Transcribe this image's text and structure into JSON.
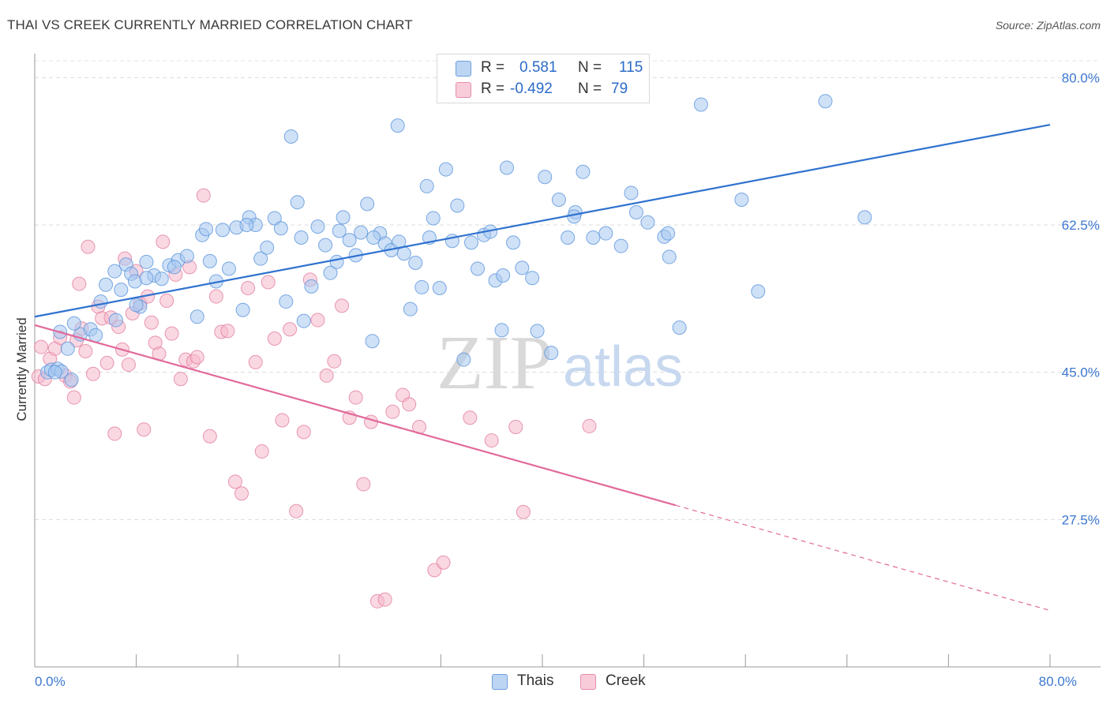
{
  "title": "THAI VS CREEK CURRENTLY MARRIED CORRELATION CHART",
  "source": "Source: ZipAtlas.com",
  "watermark": {
    "zip": "ZIP",
    "atlas": "atlas"
  },
  "legend": {
    "rows": [
      {
        "r_label": "R =",
        "r_value": "0.581",
        "n_label": "N =",
        "n_value": "115",
        "color": "#a8c8f0"
      },
      {
        "r_label": "R =",
        "r_value": "-0.492",
        "n_label": "N =",
        "n_value": "79",
        "color": "#f5b8cb"
      }
    ]
  },
  "bottom_legend": [
    {
      "label": "Thais",
      "color": "#a8c8f0"
    },
    {
      "label": "Creek",
      "color": "#f5b8cb"
    }
  ],
  "chart_data": {
    "type": "scatter",
    "xlabel": "",
    "ylabel": "Currently Married",
    "xlim": [
      0,
      80
    ],
    "ylim": [
      10,
      82
    ],
    "x_ticks": [
      {
        "value": 0,
        "label": "0.0%"
      },
      {
        "value": 80,
        "label": "80.0%"
      }
    ],
    "y_ticks": [
      {
        "value": 27.5,
        "label": "27.5%"
      },
      {
        "value": 45.0,
        "label": "45.0%"
      },
      {
        "value": 62.5,
        "label": "62.5%"
      },
      {
        "value": 80.0,
        "label": "80.0%"
      }
    ],
    "grid": true,
    "series": [
      {
        "name": "Thais",
        "color": "#5b95dc",
        "fill": "#a8c8f0",
        "trend": {
          "x": [
            0,
            80
          ],
          "y": [
            51.6,
            74.4
          ],
          "dashed_after": null
        },
        "points": [
          [
            1.0,
            45.0
          ],
          [
            1.3,
            45.3
          ],
          [
            1.8,
            45.4
          ],
          [
            2.1,
            45.1
          ],
          [
            2.9,
            44.1
          ],
          [
            2.6,
            47.8
          ],
          [
            1.6,
            45.0
          ],
          [
            3.6,
            49.5
          ],
          [
            4.4,
            50.1
          ],
          [
            4.8,
            49.4
          ],
          [
            5.2,
            53.4
          ],
          [
            5.6,
            55.4
          ],
          [
            6.4,
            51.2
          ],
          [
            6.8,
            54.8
          ],
          [
            7.2,
            57.8
          ],
          [
            7.6,
            56.7
          ],
          [
            7.9,
            55.8
          ],
          [
            8.3,
            52.8
          ],
          [
            8.8,
            58.1
          ],
          [
            9.4,
            56.5
          ],
          [
            10.0,
            56.1
          ],
          [
            10.6,
            57.7
          ],
          [
            11.3,
            58.3
          ],
          [
            12.0,
            58.8
          ],
          [
            12.8,
            51.6
          ],
          [
            13.2,
            61.3
          ],
          [
            13.8,
            58.2
          ],
          [
            14.3,
            55.8
          ],
          [
            14.8,
            61.9
          ],
          [
            15.3,
            57.3
          ],
          [
            15.9,
            62.2
          ],
          [
            16.4,
            52.4
          ],
          [
            16.9,
            63.4
          ],
          [
            17.4,
            62.5
          ],
          [
            17.8,
            58.5
          ],
          [
            18.3,
            59.8
          ],
          [
            18.9,
            63.3
          ],
          [
            19.4,
            62.1
          ],
          [
            19.8,
            53.4
          ],
          [
            20.2,
            73.0
          ],
          [
            20.7,
            65.2
          ],
          [
            21.2,
            51.1
          ],
          [
            21.8,
            55.2
          ],
          [
            22.3,
            62.3
          ],
          [
            22.9,
            60.1
          ],
          [
            23.3,
            56.8
          ],
          [
            23.8,
            58.1
          ],
          [
            24.3,
            63.4
          ],
          [
            24.8,
            60.7
          ],
          [
            25.3,
            58.9
          ],
          [
            25.7,
            61.6
          ],
          [
            26.2,
            65.0
          ],
          [
            26.6,
            48.7
          ],
          [
            27.2,
            61.5
          ],
          [
            27.6,
            60.3
          ],
          [
            28.1,
            59.5
          ],
          [
            28.6,
            74.3
          ],
          [
            29.1,
            59.1
          ],
          [
            29.6,
            52.5
          ],
          [
            30.0,
            58.0
          ],
          [
            30.5,
            55.1
          ],
          [
            30.9,
            67.1
          ],
          [
            31.4,
            63.3
          ],
          [
            31.9,
            55.0
          ],
          [
            32.4,
            69.1
          ],
          [
            32.9,
            60.6
          ],
          [
            33.3,
            64.8
          ],
          [
            33.8,
            46.5
          ],
          [
            34.4,
            60.4
          ],
          [
            34.9,
            57.3
          ],
          [
            35.4,
            61.3
          ],
          [
            35.9,
            61.7
          ],
          [
            36.3,
            55.9
          ],
          [
            36.8,
            50.0
          ],
          [
            37.2,
            69.3
          ],
          [
            37.7,
            60.4
          ],
          [
            38.4,
            57.4
          ],
          [
            39.2,
            56.2
          ],
          [
            39.6,
            49.9
          ],
          [
            40.2,
            68.2
          ],
          [
            40.7,
            47.3
          ],
          [
            41.3,
            65.5
          ],
          [
            42.0,
            61.0
          ],
          [
            42.6,
            64.0
          ],
          [
            43.2,
            68.8
          ],
          [
            44.0,
            61.0
          ],
          [
            45.0,
            61.5
          ],
          [
            46.2,
            60.0
          ],
          [
            47.0,
            66.3
          ],
          [
            47.4,
            64.0
          ],
          [
            49.6,
            61.1
          ],
          [
            50.0,
            58.7
          ],
          [
            50.8,
            50.3
          ],
          [
            52.5,
            76.8
          ],
          [
            55.7,
            65.5
          ],
          [
            57.0,
            54.6
          ],
          [
            62.3,
            77.2
          ],
          [
            65.4,
            63.4
          ],
          [
            2.0,
            49.8
          ],
          [
            3.1,
            50.8
          ],
          [
            6.3,
            57.0
          ],
          [
            8.8,
            56.2
          ],
          [
            11.0,
            57.5
          ],
          [
            13.5,
            62.0
          ],
          [
            16.7,
            62.5
          ],
          [
            21.0,
            61.0
          ],
          [
            24.0,
            61.8
          ],
          [
            26.7,
            61.0
          ],
          [
            28.7,
            60.5
          ],
          [
            31.1,
            61.0
          ],
          [
            36.9,
            56.5
          ],
          [
            42.5,
            63.5
          ],
          [
            48.3,
            62.8
          ],
          [
            49.9,
            61.5
          ],
          [
            8.0,
            53.0
          ]
        ]
      },
      {
        "name": "Creek",
        "color": "#e27ea0",
        "fill": "#f5b8cb",
        "trend": {
          "x": [
            0,
            50.5
          ],
          "y": [
            50.6,
            29.2
          ],
          "dashed_x": [
            50.5,
            80
          ],
          "dashed_y": [
            29.2,
            16.7
          ]
        },
        "points": [
          [
            0.3,
            44.5
          ],
          [
            0.5,
            48.0
          ],
          [
            0.8,
            44.2
          ],
          [
            1.2,
            46.6
          ],
          [
            1.6,
            47.8
          ],
          [
            2.0,
            49.1
          ],
          [
            2.4,
            44.6
          ],
          [
            2.8,
            43.9
          ],
          [
            3.1,
            42.0
          ],
          [
            3.3,
            48.8
          ],
          [
            3.7,
            50.2
          ],
          [
            3.5,
            55.5
          ],
          [
            4.0,
            47.5
          ],
          [
            4.2,
            59.9
          ],
          [
            4.6,
            44.8
          ],
          [
            5.0,
            52.8
          ],
          [
            5.3,
            51.4
          ],
          [
            5.7,
            46.1
          ],
          [
            6.0,
            51.5
          ],
          [
            6.3,
            37.7
          ],
          [
            6.6,
            50.4
          ],
          [
            6.9,
            47.7
          ],
          [
            7.1,
            58.5
          ],
          [
            7.4,
            45.9
          ],
          [
            7.7,
            52.0
          ],
          [
            8.0,
            57.0
          ],
          [
            8.3,
            53.2
          ],
          [
            8.6,
            38.2
          ],
          [
            8.9,
            54.0
          ],
          [
            9.2,
            50.9
          ],
          [
            9.5,
            48.5
          ],
          [
            9.8,
            47.2
          ],
          [
            10.1,
            60.5
          ],
          [
            10.4,
            53.5
          ],
          [
            10.8,
            49.6
          ],
          [
            11.1,
            56.6
          ],
          [
            11.5,
            44.2
          ],
          [
            11.9,
            46.5
          ],
          [
            12.2,
            57.5
          ],
          [
            12.5,
            46.3
          ],
          [
            12.8,
            46.8
          ],
          [
            13.3,
            66.0
          ],
          [
            13.8,
            37.4
          ],
          [
            14.3,
            54.0
          ],
          [
            14.7,
            49.8
          ],
          [
            15.2,
            49.9
          ],
          [
            15.8,
            32.0
          ],
          [
            16.3,
            30.6
          ],
          [
            16.8,
            55.0
          ],
          [
            17.4,
            46.2
          ],
          [
            17.9,
            35.6
          ],
          [
            18.4,
            55.7
          ],
          [
            18.9,
            49.0
          ],
          [
            19.5,
            39.3
          ],
          [
            20.1,
            50.1
          ],
          [
            20.6,
            28.5
          ],
          [
            21.2,
            37.9
          ],
          [
            21.7,
            56.0
          ],
          [
            22.3,
            51.2
          ],
          [
            23.0,
            44.6
          ],
          [
            23.6,
            46.3
          ],
          [
            24.2,
            52.9
          ],
          [
            24.8,
            39.6
          ],
          [
            25.3,
            42.0
          ],
          [
            25.9,
            31.7
          ],
          [
            26.5,
            39.1
          ],
          [
            27.0,
            17.8
          ],
          [
            27.6,
            18.0
          ],
          [
            28.2,
            40.3
          ],
          [
            29.0,
            42.3
          ],
          [
            29.5,
            41.2
          ],
          [
            30.3,
            38.5
          ],
          [
            31.5,
            21.5
          ],
          [
            32.2,
            22.4
          ],
          [
            34.3,
            39.6
          ],
          [
            36.0,
            36.9
          ],
          [
            37.9,
            38.5
          ],
          [
            38.5,
            28.4
          ],
          [
            43.7,
            38.6
          ]
        ]
      }
    ]
  }
}
